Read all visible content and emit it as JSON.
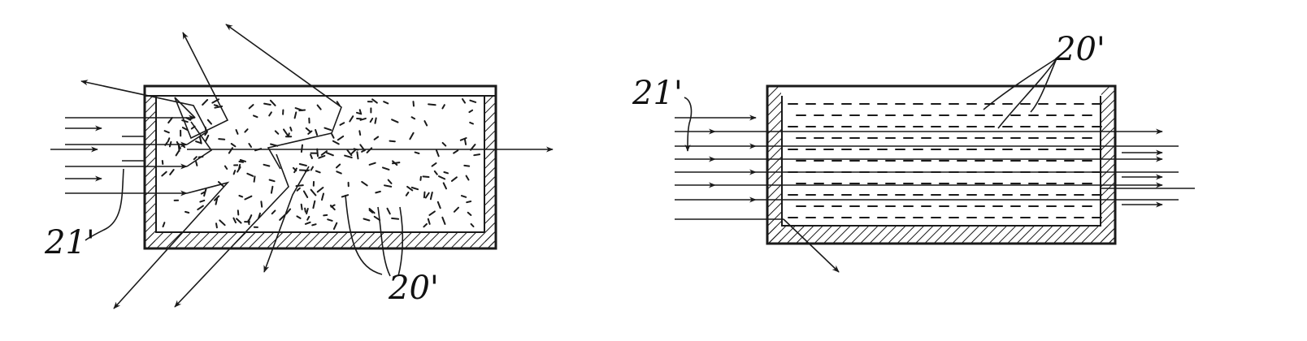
{
  "figures": [
    {
      "id": "disordered",
      "description_labels": {
        "particles": "20'",
        "incident_beam": "21'"
      },
      "state": "scattering"
    },
    {
      "id": "aligned",
      "description_labels": {
        "particles": "20'",
        "incident_beam": "21'"
      },
      "state": "transmitting"
    }
  ],
  "colors": {
    "ink": "#1a1a1a",
    "paper": "#ffffff"
  }
}
